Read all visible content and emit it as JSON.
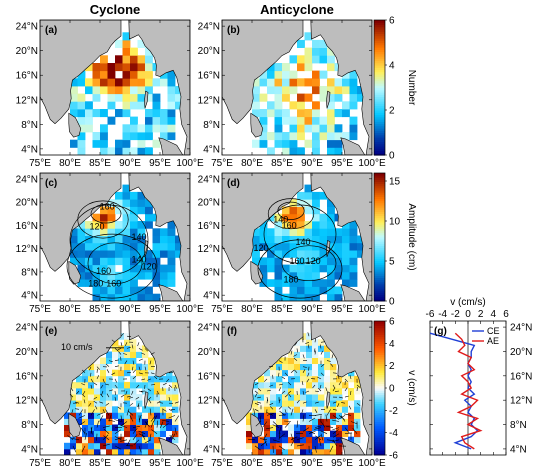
{
  "columns": {
    "left": "Cyclone",
    "right": "Anticyclone"
  },
  "panel_labels": [
    "(a)",
    "(b)",
    "(c)",
    "(d)",
    "(e)",
    "(f)",
    "(g)"
  ],
  "axes": {
    "lat_ticks": [
      "4°N",
      "8°N",
      "12°N",
      "16°N",
      "20°N",
      "24°N"
    ],
    "lon_ticks": [
      "75°E",
      "80°E",
      "85°E",
      "90°E",
      "95°E",
      "100°E"
    ]
  },
  "colorbars": {
    "number": {
      "label": "Number",
      "ticks": [
        "0",
        "2",
        "4",
        "6"
      ],
      "range": [
        0,
        6
      ]
    },
    "amplitude": {
      "label": "Amplitude (cm)",
      "ticks": [
        "0",
        "5",
        "10",
        "15"
      ],
      "range": [
        0,
        16
      ]
    },
    "velocity": {
      "label": "v (cm/s)",
      "ticks": [
        "-6",
        "-4",
        "-2",
        "0",
        "2",
        "4",
        "6"
      ],
      "range": [
        -6,
        6
      ]
    }
  },
  "vector_scale_label": "10 cm/s",
  "contour_labels": {
    "c": [
      "120",
      "160",
      "140",
      "160",
      "120",
      "140",
      "180",
      "160"
    ],
    "d": [
      "140",
      "160",
      "120",
      "140",
      "160",
      "120",
      "180"
    ]
  },
  "chart_data": [
    {
      "type": "heatmap",
      "panel": "(a)",
      "title": "Cyclone",
      "colorbar": "Number",
      "clim": [
        0,
        6
      ],
      "xlim": [
        75,
        100
      ],
      "ylim": [
        3,
        25
      ]
    },
    {
      "type": "heatmap",
      "panel": "(b)",
      "title": "Anticyclone",
      "colorbar": "Number",
      "clim": [
        0,
        6
      ],
      "xlim": [
        75,
        100
      ],
      "ylim": [
        3,
        25
      ]
    },
    {
      "type": "heatmap",
      "panel": "(c)",
      "colorbar": "Amplitude (cm)",
      "clim": [
        0,
        16
      ],
      "xlim": [
        75,
        100
      ],
      "ylim": [
        3,
        25
      ]
    },
    {
      "type": "heatmap",
      "panel": "(d)",
      "colorbar": "Amplitude (cm)",
      "clim": [
        0,
        16
      ],
      "xlim": [
        75,
        100
      ],
      "ylim": [
        3,
        25
      ]
    },
    {
      "type": "heatmap",
      "panel": "(e)",
      "colorbar": "v (cm/s)",
      "clim": [
        -6,
        6
      ],
      "xlim": [
        75,
        100
      ],
      "ylim": [
        3,
        25
      ]
    },
    {
      "type": "heatmap",
      "panel": "(f)",
      "colorbar": "v (cm/s)",
      "clim": [
        -6,
        6
      ],
      "xlim": [
        75,
        100
      ],
      "ylim": [
        3,
        25
      ]
    },
    {
      "type": "line",
      "panel": "(g)",
      "xlabel": "v (cm/s)",
      "xlim": [
        -6,
        6
      ],
      "ylim": [
        3,
        25
      ],
      "y": [
        4,
        5,
        6,
        7,
        8,
        9,
        10,
        11,
        12,
        13,
        14,
        15,
        16,
        17,
        18,
        19,
        20,
        21,
        22,
        23
      ],
      "series": [
        {
          "name": "CE",
          "color": "#1f3fd6",
          "x": [
            0.5,
            -2.0,
            0.5,
            1.5,
            0.5,
            1.0,
            0.0,
            0.5,
            -0.5,
            1.0,
            0.0,
            0.5,
            0.0,
            0.5,
            0.0,
            0.5,
            0.5,
            1.0,
            -2.5,
            -6.0
          ]
        },
        {
          "name": "AE",
          "color": "#e01b1b",
          "x": [
            1.0,
            -0.5,
            -1.0,
            2.0,
            0.0,
            1.5,
            -1.5,
            0.5,
            1.5,
            -1.0,
            0.5,
            0.0,
            -1.0,
            1.0,
            0.0,
            0.5,
            -1.5,
            -0.5,
            -1.0,
            -2.0
          ]
        }
      ]
    }
  ]
}
